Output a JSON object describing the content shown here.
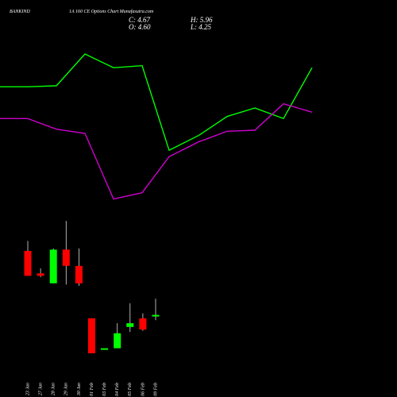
{
  "header": {
    "symbol": "BANKIND",
    "title": "1A 160 CE Options  Chart Munafasutra.com"
  },
  "ohlc": {
    "close_label": "C: 4.67",
    "open_label": "O: 4.60",
    "high_label": "H: 5.96",
    "low_label": "L: 4.25"
  },
  "colors": {
    "background": "#000000",
    "up": "#00ff00",
    "down": "#ff0000",
    "line_green": "#00ff00",
    "line_magenta": "#cc00cc",
    "text": "#ffffff"
  },
  "chart_data": [
    {
      "type": "line",
      "series": [
        {
          "values": [
            6.4,
            6.4,
            6.45,
            7.95,
            7.3,
            7.4,
            3.4,
            4.1,
            5.0,
            5.4,
            4.9,
            7.3
          ]
        },
        {
          "values": [
            4.9,
            4.9,
            4.4,
            4.2,
            1.1,
            1.4,
            3.1,
            3.8,
            4.3,
            4.35,
            5.6,
            5.2
          ]
        }
      ],
      "ylim": [
        0,
        9
      ]
    },
    {
      "type": "candlestick",
      "categories": [
        "23 Jan",
        "27 Jan",
        "28 Jan",
        "29 Jan",
        "30 Jan",
        "01 Feb",
        "03 Feb",
        "04 Feb",
        "05 Feb",
        "06 Feb",
        "09 Feb"
      ],
      "open": [
        9.8,
        8.0,
        7.2,
        9.9,
        8.6,
        4.4,
        2.0,
        2.0,
        3.7,
        4.4,
        4.6
      ],
      "high": [
        10.6,
        8.4,
        10.0,
        12.2,
        10.0,
        4.4,
        2.0,
        4.0,
        5.6,
        4.8,
        5.96
      ],
      "low": [
        7.8,
        7.7,
        7.2,
        7.1,
        7.0,
        1.6,
        1.9,
        2.0,
        3.3,
        3.4,
        4.25
      ],
      "close": [
        7.8,
        7.8,
        9.9,
        8.6,
        7.2,
        1.6,
        2.0,
        3.2,
        4.0,
        3.5,
        4.67
      ],
      "ylim": [
        0,
        14
      ]
    }
  ]
}
